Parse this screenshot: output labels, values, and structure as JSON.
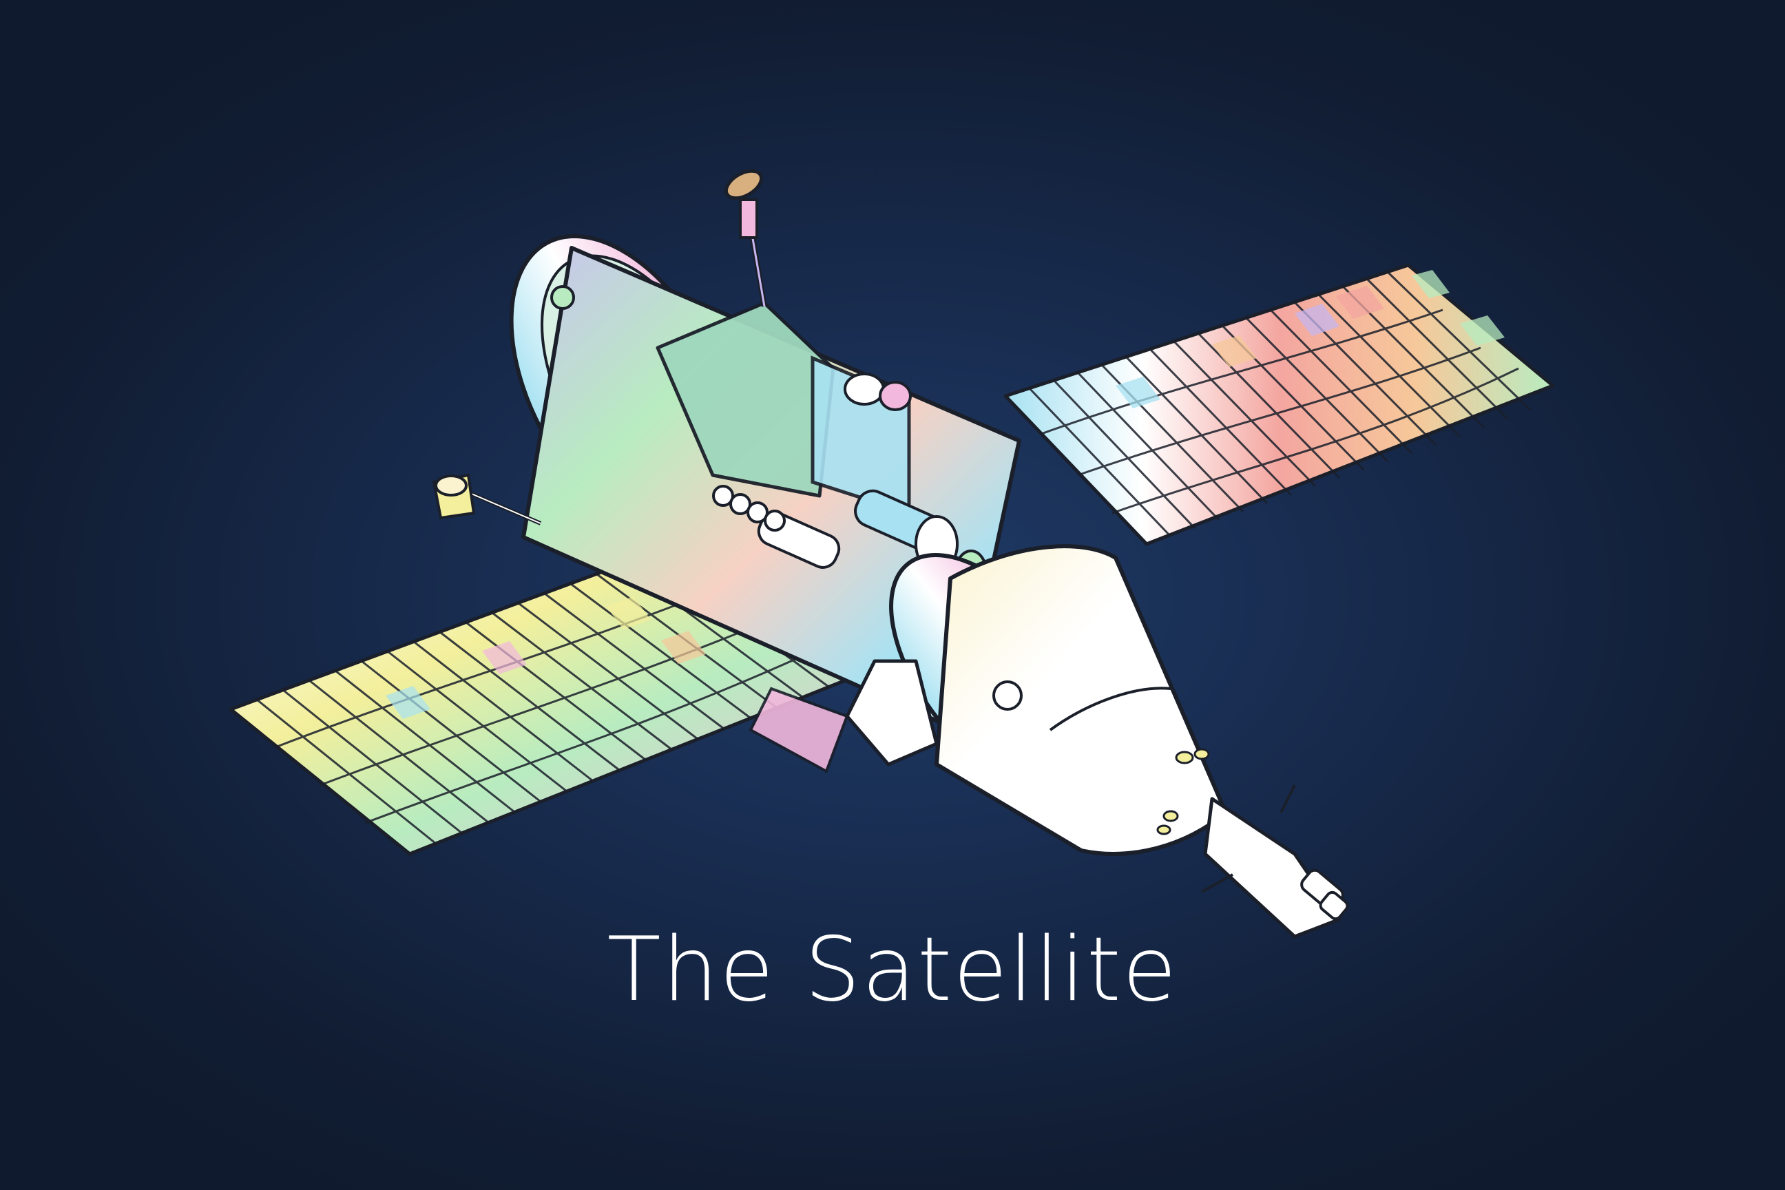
{
  "poster": {
    "title": "The Satellite"
  },
  "illustration": {
    "subject": "satellite-illustration",
    "palette": {
      "background_center": "#1f3a66",
      "background_edge": "#0f1a2e",
      "outline": "#1a1f2a",
      "panel_tints": [
        "#f4a6a0",
        "#f6c89a",
        "#f3ef9c",
        "#b8ecc0",
        "#a8e2f2",
        "#c7b6f0",
        "#f2b8dd",
        "#ffffff"
      ]
    }
  }
}
